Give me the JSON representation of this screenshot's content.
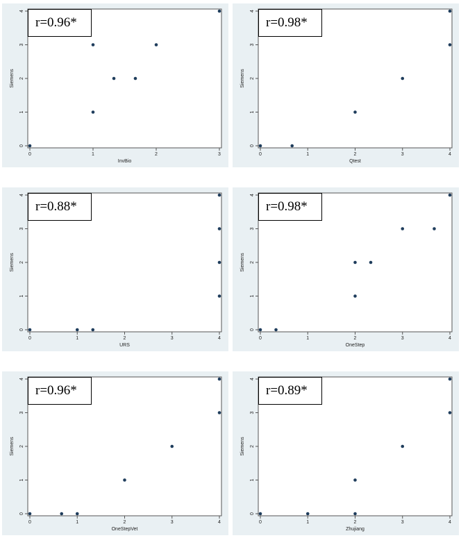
{
  "chart_data": [
    {
      "type": "scatter",
      "annotation": "r=0.96*",
      "xlabel": "InvBio",
      "ylabel": "Siemens",
      "xlim": [
        0,
        3
      ],
      "ylim": [
        0,
        4
      ],
      "xticks": [
        0,
        1,
        2,
        3
      ],
      "yticks": [
        0,
        1,
        2,
        3,
        4
      ],
      "x": [
        0,
        1,
        1,
        1.33,
        1.67,
        2,
        3
      ],
      "y": [
        0,
        3,
        1,
        2,
        2,
        3,
        4
      ],
      "point_color": "#1f3d5c"
    },
    {
      "type": "scatter",
      "annotation": "r=0.98*",
      "xlabel": "Qtest",
      "ylabel": "Siemens",
      "xlim": [
        0,
        4
      ],
      "ylim": [
        0,
        4
      ],
      "xticks": [
        0,
        1,
        2,
        3,
        4
      ],
      "yticks": [
        0,
        1,
        2,
        3,
        4
      ],
      "x": [
        0,
        0.67,
        2,
        3,
        4,
        4
      ],
      "y": [
        0,
        0,
        1,
        2,
        3,
        4
      ],
      "point_color": "#1f3d5c"
    },
    {
      "type": "scatter",
      "annotation": "r=0.88*",
      "xlabel": "URS",
      "ylabel": "Siemens",
      "xlim": [
        0,
        4
      ],
      "ylim": [
        0,
        4
      ],
      "xticks": [
        0,
        1,
        2,
        3,
        4
      ],
      "yticks": [
        0,
        1,
        2,
        3,
        4
      ],
      "x": [
        0,
        1,
        1.33,
        4,
        4,
        4,
        4
      ],
      "y": [
        0,
        0,
        0,
        1,
        2,
        3,
        4
      ],
      "point_color": "#1f3d5c"
    },
    {
      "type": "scatter",
      "annotation": "r=0.98*",
      "xlabel": "OneStep",
      "ylabel": "Siemens",
      "xlim": [
        0,
        4
      ],
      "ylim": [
        0,
        4
      ],
      "xticks": [
        0,
        1,
        2,
        3,
        4
      ],
      "yticks": [
        0,
        1,
        2,
        3,
        4
      ],
      "x": [
        0,
        0.33,
        2,
        2,
        2.33,
        3,
        3.67,
        4
      ],
      "y": [
        0,
        0,
        1,
        2,
        2,
        3,
        3,
        4
      ],
      "point_color": "#1f3d5c"
    },
    {
      "type": "scatter",
      "annotation": "r=0.96*",
      "xlabel": "OneStepVet",
      "ylabel": "Siemens",
      "xlim": [
        0,
        4
      ],
      "ylim": [
        0,
        4
      ],
      "xticks": [
        0,
        1,
        2,
        3,
        4
      ],
      "yticks": [
        0,
        1,
        2,
        3,
        4
      ],
      "x": [
        0,
        0.67,
        1,
        2,
        3,
        4,
        4
      ],
      "y": [
        0,
        0,
        0,
        1,
        2,
        3,
        4
      ],
      "point_color": "#1f3d5c"
    },
    {
      "type": "scatter",
      "annotation": "r=0.89*",
      "xlabel": "Zhujiang",
      "ylabel": "Siemens",
      "xlim": [
        0,
        4
      ],
      "ylim": [
        0,
        4
      ],
      "xticks": [
        0,
        1,
        2,
        3,
        4
      ],
      "yticks": [
        0,
        1,
        2,
        3,
        4
      ],
      "x": [
        0,
        1,
        2,
        2,
        3,
        4,
        4
      ],
      "y": [
        0,
        0,
        0,
        1,
        2,
        3,
        4
      ],
      "point_color": "#1f3d5c"
    }
  ]
}
